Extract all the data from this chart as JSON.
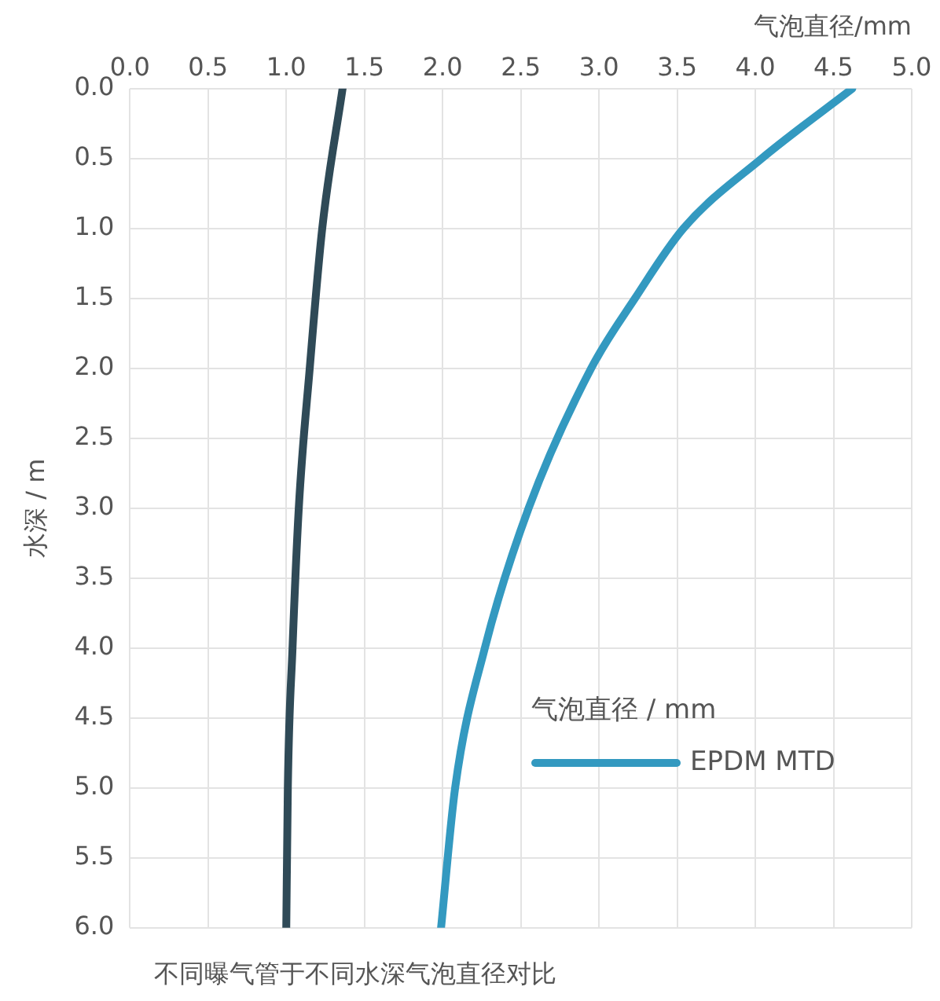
{
  "chart_data": {
    "type": "line",
    "xlabel": "气泡直径/mm",
    "ylabel": "水深 / m",
    "legend_title": "气泡直径 / mm",
    "legend": "bottom right",
    "grid": true,
    "marker": "none",
    "line_style": "solid",
    "xlim": [
      0,
      5
    ],
    "xticks": [
      {
        "value": 0,
        "label": "0.0"
      },
      {
        "value": 0.5,
        "label": "0.5"
      },
      {
        "value": 1,
        "label": "1.0"
      },
      {
        "value": 1.5,
        "label": "1.5"
      },
      {
        "value": 2,
        "label": "2.0"
      },
      {
        "value": 2.5,
        "label": "2.5"
      },
      {
        "value": 3,
        "label": "3.0"
      },
      {
        "value": 3.5,
        "label": "3.5"
      },
      {
        "value": 4,
        "label": "4.0"
      },
      {
        "value": 4.5,
        "label": "4.5"
      },
      {
        "value": 5,
        "label": "5.0"
      }
    ],
    "ylim": [
      6,
      0
    ],
    "yticks": [
      {
        "value": 0,
        "label": "0.0"
      },
      {
        "value": 0.5,
        "label": "0.5"
      },
      {
        "value": 1,
        "label": "1.0"
      },
      {
        "value": 1.5,
        "label": "1.5"
      },
      {
        "value": 2,
        "label": "2.0"
      },
      {
        "value": 2.5,
        "label": "2.5"
      },
      {
        "value": 3,
        "label": "3.0"
      },
      {
        "value": 3.5,
        "label": "3.5"
      },
      {
        "value": 4,
        "label": "4.0"
      },
      {
        "value": 4.5,
        "label": "4.5"
      },
      {
        "value": 5,
        "label": "5.0"
      },
      {
        "value": 5.5,
        "label": "5.5"
      },
      {
        "value": 6,
        "label": "6.0"
      }
    ],
    "series": [
      {
        "color": "#2f4a57",
        "x": [
          1.36,
          1.23,
          1.15,
          1.08,
          1.04,
          1.01,
          1.0
        ],
        "values": [
          0,
          1,
          2,
          3,
          4,
          5,
          6
        ]
      },
      {
        "name": "EPDM MTD",
        "color": "#3399c0",
        "x": [
          4.62,
          4.04,
          3.54,
          3.23,
          2.95,
          2.55,
          2.27,
          2.08,
          1.99
        ],
        "values": [
          0,
          0.5,
          1,
          1.5,
          2,
          3,
          4,
          5,
          6
        ]
      }
    ],
    "annotations": [
      "不同曝气管于不同水深气泡直径对比"
    ]
  }
}
